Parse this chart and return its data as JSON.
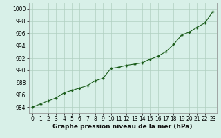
{
  "hours": [
    0,
    1,
    2,
    3,
    4,
    5,
    6,
    7,
    8,
    9,
    10,
    11,
    12,
    13,
    14,
    15,
    16,
    17,
    18,
    19,
    20,
    21,
    22,
    23
  ],
  "pressure": [
    984.0,
    984.5,
    985.0,
    985.5,
    986.3,
    986.7,
    987.1,
    987.5,
    988.3,
    988.7,
    990.3,
    990.5,
    990.8,
    991.0,
    991.2,
    991.8,
    992.3,
    993.0,
    994.2,
    995.7,
    996.2,
    997.0,
    997.7,
    999.5
  ],
  "line_color": "#1a5c1a",
  "marker_color": "#1a5c1a",
  "bg_color": "#d8f0e8",
  "grid_color": "#b0cfc0",
  "xlabel": "Graphe pression niveau de la mer (hPa)",
  "ylim": [
    983,
    1001
  ],
  "xlim": [
    -0.5,
    23.5
  ],
  "yticks": [
    984,
    986,
    988,
    990,
    992,
    994,
    996,
    998,
    1000
  ],
  "xticks": [
    0,
    1,
    2,
    3,
    4,
    5,
    6,
    7,
    8,
    9,
    10,
    11,
    12,
    13,
    14,
    15,
    16,
    17,
    18,
    19,
    20,
    21,
    22,
    23
  ],
  "tick_fontsize": 5.5,
  "xlabel_fontsize": 6.5,
  "linewidth": 0.8,
  "markersize": 2.5
}
